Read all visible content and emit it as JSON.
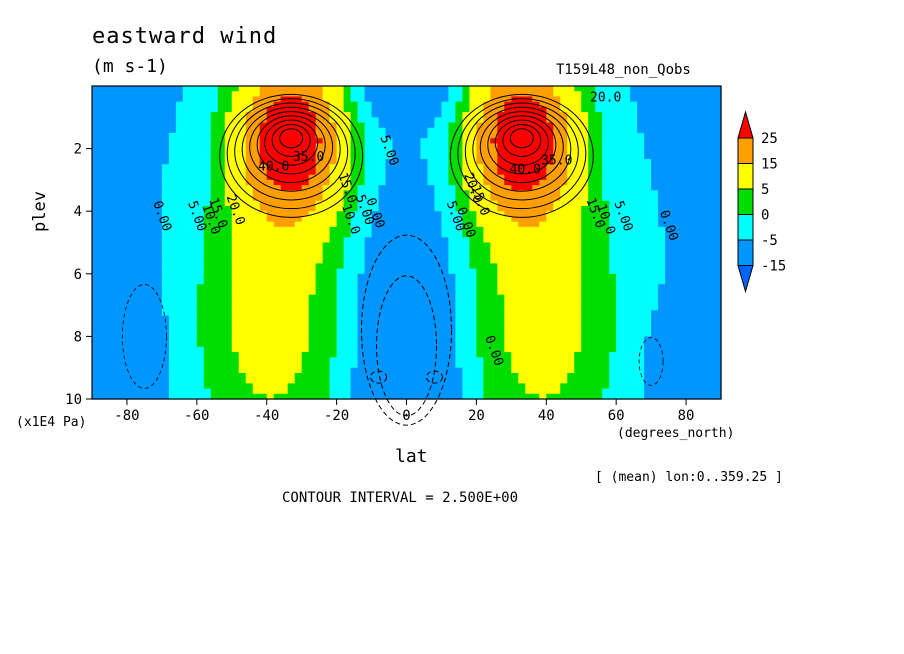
{
  "chart_data": {
    "type": "heatmap",
    "title": "eastward wind",
    "units": "(m s-1)",
    "run_label": "T159L48_non_Qobs",
    "xlabel": "lat",
    "x_units": "(degrees_north)",
    "ylabel": "plev",
    "y_units": "(x1E4 Pa)",
    "subtitle": "[ (mean) lon:0..359.25 ]",
    "contour_interval": "CONTOUR INTERVAL = 2.500E+00",
    "xlim": [
      -90,
      90
    ],
    "ylim": [
      10,
      0
    ],
    "x_ticks": [
      "-80",
      "-60",
      "-40",
      "-20",
      "0",
      "20",
      "40",
      "60",
      "80"
    ],
    "x_tick_values": [
      -80,
      -60,
      -40,
      -20,
      0,
      20,
      40,
      60,
      80
    ],
    "y_ticks": [
      "2",
      "4",
      "6",
      "8",
      "10"
    ],
    "y_tick_values": [
      2,
      4,
      6,
      8,
      10
    ],
    "colorbar": {
      "labels": [
        "25",
        "15",
        "5",
        "0",
        "-5",
        "-15"
      ],
      "levels": [
        25,
        15,
        5,
        0,
        -5,
        -15
      ],
      "colors": [
        "#ff0000",
        "#ffa000",
        "#ffff00",
        "#00dd00",
        "#00ffff",
        "#0096ff",
        "#0064ff"
      ]
    },
    "jets": [
      {
        "lat": -33,
        "plev": 1.6,
        "max": 42
      },
      {
        "lat": 33,
        "plev": 1.6,
        "max": 42
      }
    ],
    "contour_labels": [
      {
        "text": "40.0",
        "lat": -38,
        "plev": 2.7
      },
      {
        "text": "35.0",
        "lat": -28,
        "plev": 2.4
      },
      {
        "text": "40.0",
        "lat": 34,
        "plev": 2.8
      },
      {
        "text": "35.0",
        "lat": 43,
        "plev": 2.5
      },
      {
        "text": "20.0",
        "lat": 57,
        "plev": 0.5
      },
      {
        "text": "0.00",
        "lat": -71,
        "plev": 4.2
      },
      {
        "text": "5.00",
        "lat": -61,
        "plev": 4.2
      },
      {
        "text": "10.0",
        "lat": -57,
        "plev": 4.3
      },
      {
        "text": "15.0",
        "lat": -55,
        "plev": 4.1
      },
      {
        "text": "20.0",
        "lat": -50,
        "plev": 4.0
      },
      {
        "text": "15.0",
        "lat": -18,
        "plev": 3.3
      },
      {
        "text": "10.0",
        "lat": -17,
        "plev": 4.3
      },
      {
        "text": "5.00",
        "lat": -13,
        "plev": 4.0
      },
      {
        "text": "0.00",
        "lat": -10,
        "plev": 4.1
      },
      {
        "text": "5.00",
        "lat": -6,
        "plev": 2.1
      },
      {
        "text": "20.0",
        "lat": 18,
        "plev": 3.3
      },
      {
        "text": "15.0",
        "lat": 20,
        "plev": 3.7
      },
      {
        "text": "5.00",
        "lat": 13,
        "plev": 4.2
      },
      {
        "text": "0.00",
        "lat": 16,
        "plev": 4.4
      },
      {
        "text": "0.00",
        "lat": 24,
        "plev": 8.5
      },
      {
        "text": "15.0",
        "lat": 53,
        "plev": 4.1
      },
      {
        "text": "10.0",
        "lat": 56,
        "plev": 4.3
      },
      {
        "text": "5.00",
        "lat": 61,
        "plev": 4.2
      },
      {
        "text": "0.00",
        "lat": 74,
        "plev": 4.5
      }
    ]
  }
}
